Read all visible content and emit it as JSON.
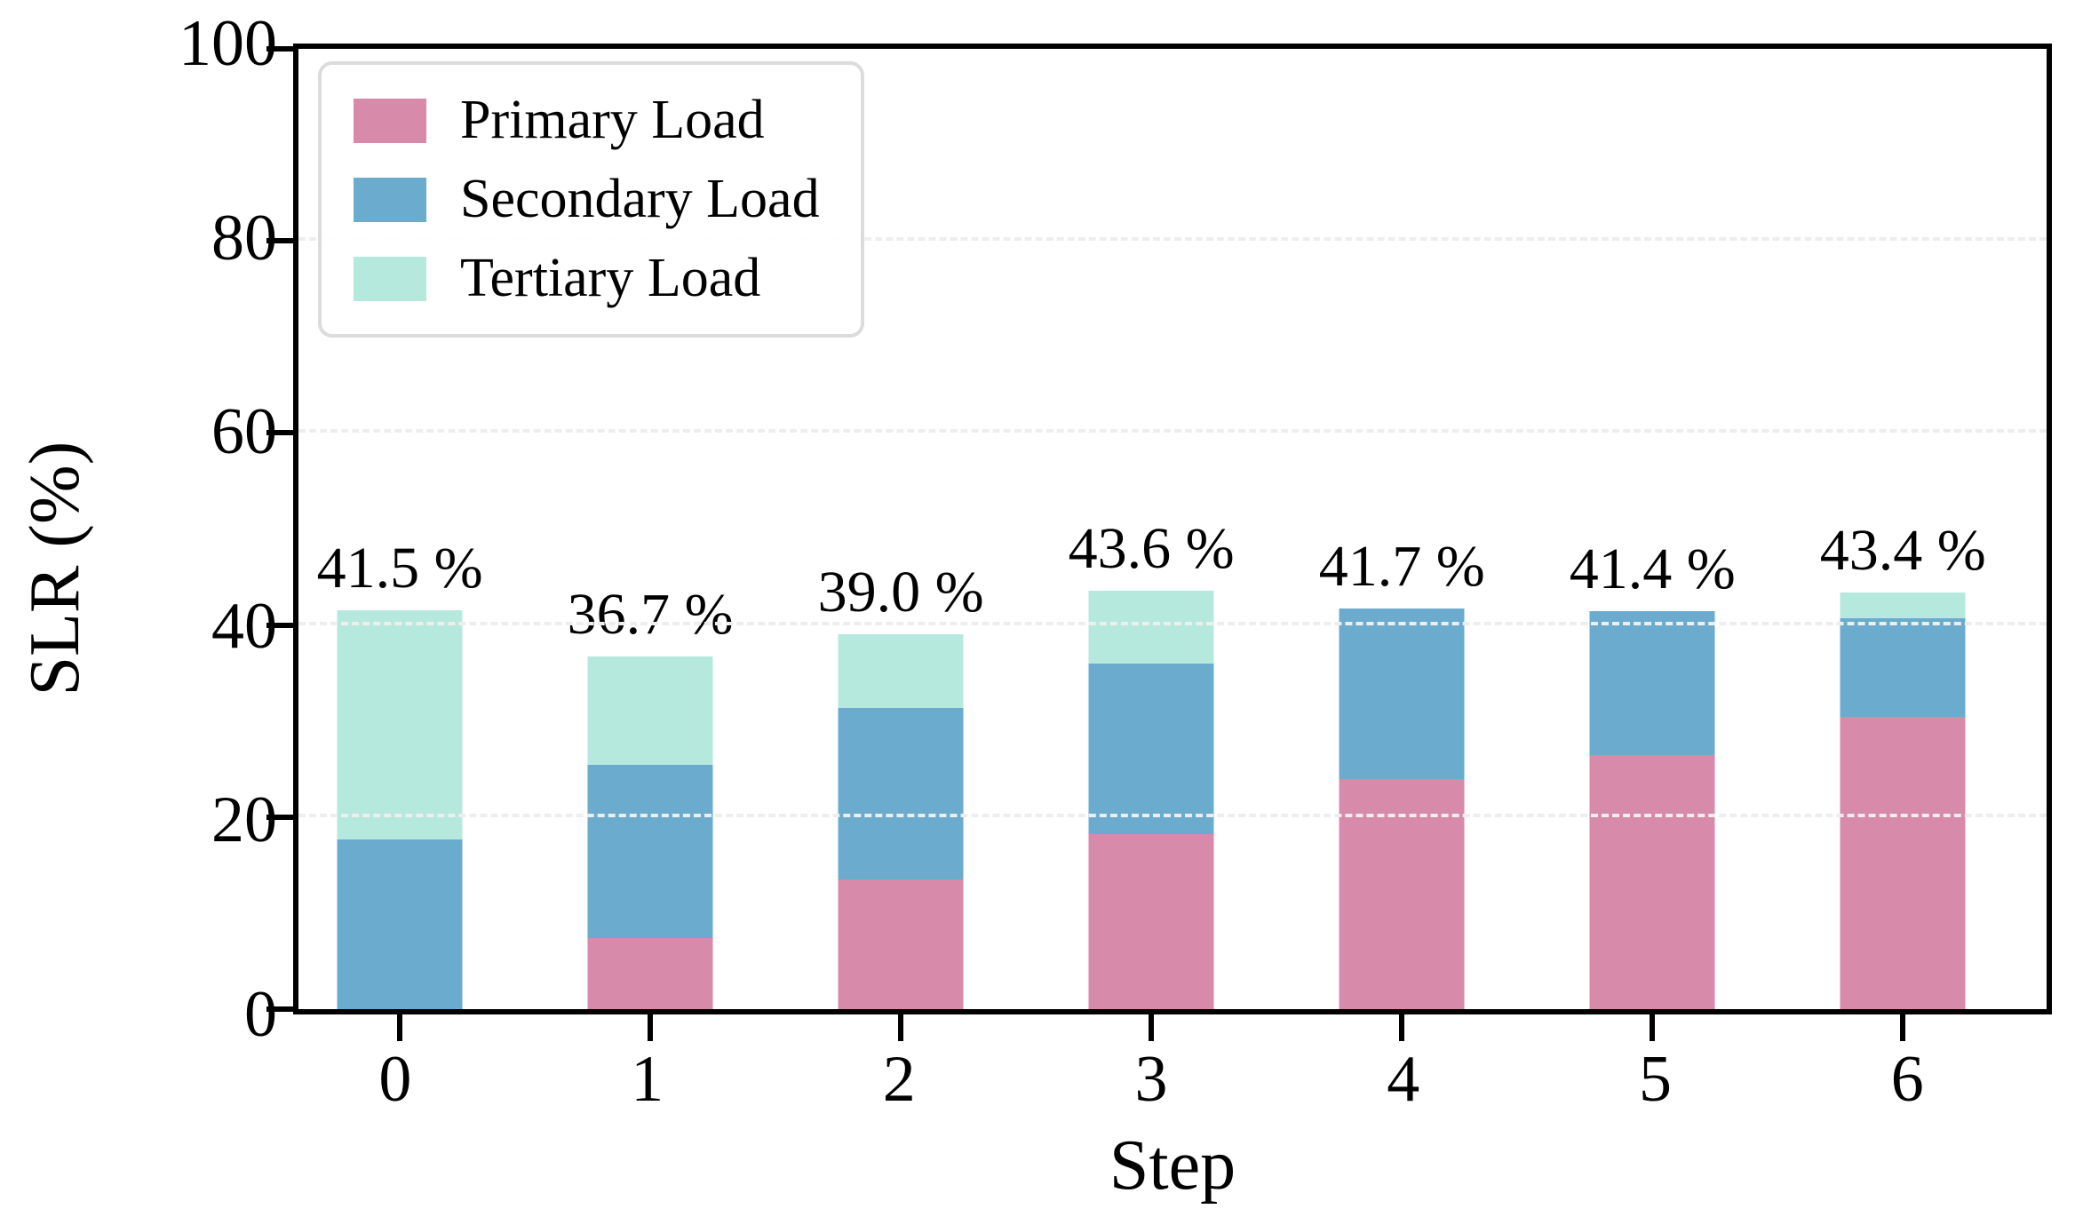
{
  "chart_data": {
    "type": "bar",
    "stacked": true,
    "title": "",
    "xlabel": "Step",
    "ylabel": "SLR (%)",
    "categories": [
      "0",
      "1",
      "2",
      "3",
      "4",
      "5",
      "6"
    ],
    "series": [
      {
        "name": "Primary Load",
        "color": "#d78aa9",
        "values": [
          0.0,
          7.4,
          13.5,
          18.2,
          24.0,
          26.5,
          30.4
        ]
      },
      {
        "name": "Secondary Load",
        "color": "#6babce",
        "values": [
          17.7,
          18.0,
          17.9,
          17.8,
          17.7,
          14.9,
          10.3
        ]
      },
      {
        "name": "Tertiary Load",
        "color": "#b6e9de",
        "values": [
          23.8,
          11.3,
          7.6,
          7.6,
          0.0,
          0.0,
          2.7
        ]
      }
    ],
    "totals": [
      41.5,
      36.7,
      39.0,
      43.6,
      41.7,
      41.4,
      43.4
    ],
    "total_labels": [
      "41.5 %",
      "36.7 %",
      "39.0 %",
      "43.6 %",
      "41.7 %",
      "41.4 %",
      "43.4 %"
    ],
    "ylim": [
      0,
      100
    ],
    "y_ticks": [
      0,
      20,
      40,
      60,
      80,
      100
    ],
    "grid": "horizontal-dashed-faint",
    "legend_position": "upper left"
  },
  "legend": {
    "items": [
      {
        "label": "Primary Load"
      },
      {
        "label": "Secondary Load"
      },
      {
        "label": "Tertiary Load"
      }
    ]
  },
  "colors": {
    "spine": "#000000",
    "gridline": "#eeeeee",
    "legend_border": "#dcdcdc",
    "background": "#ffffff"
  }
}
